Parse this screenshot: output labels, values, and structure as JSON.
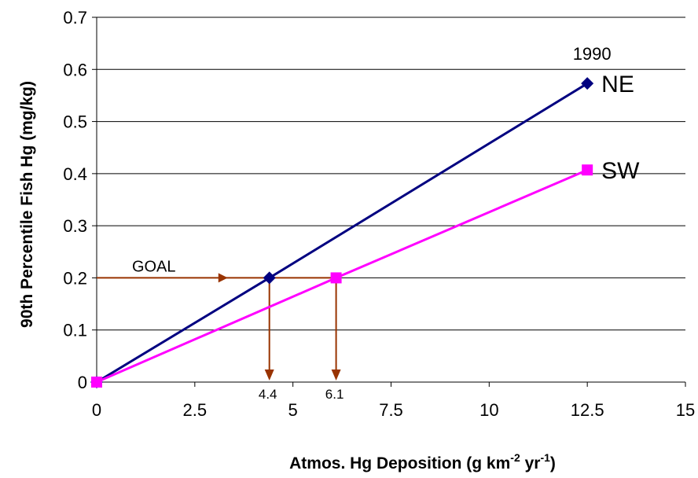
{
  "chart_data": {
    "type": "line",
    "xlabel_main": "Atmos. Hg Deposition (g km",
    "xlabel_sup1": "-2",
    "xlabel_mid": " yr",
    "xlabel_sup2": "-1",
    "xlabel_end": ")",
    "ylabel": "90th Percentile Fish Hg (mg/kg)",
    "xlim": [
      0,
      15
    ],
    "ylim": [
      0,
      0.7
    ],
    "x_ticks": [
      0,
      2.5,
      5,
      7.5,
      10,
      12.5,
      15
    ],
    "x_tick_labels": [
      "0",
      "2.5",
      "5",
      "7.5",
      "10",
      "12.5",
      "15"
    ],
    "y_ticks": [
      0,
      0.1,
      0.2,
      0.3,
      0.4,
      0.5,
      0.6,
      0.7
    ],
    "y_tick_labels": [
      "0",
      "0.1",
      "0.2",
      "0.3",
      "0.4",
      "0.5",
      "0.6",
      "0.7"
    ],
    "grid": "horizontal",
    "series": [
      {
        "name": "NE",
        "color": "#000080",
        "marker": "diamond",
        "x": [
          0,
          4.4,
          12.5
        ],
        "y": [
          0,
          0.2,
          0.573
        ]
      },
      {
        "name": "SW",
        "color": "#ff00ff",
        "marker": "square",
        "x": [
          0,
          6.1,
          12.5
        ],
        "y": [
          0,
          0.2,
          0.407
        ]
      }
    ],
    "annotations": {
      "year": "1990",
      "goal": {
        "label": "GOAL",
        "y": 0.2,
        "color": "#993300"
      },
      "drop_lines": [
        {
          "x": 4.4,
          "label": "4.4"
        },
        {
          "x": 6.1,
          "label": "6.1"
        }
      ]
    }
  }
}
